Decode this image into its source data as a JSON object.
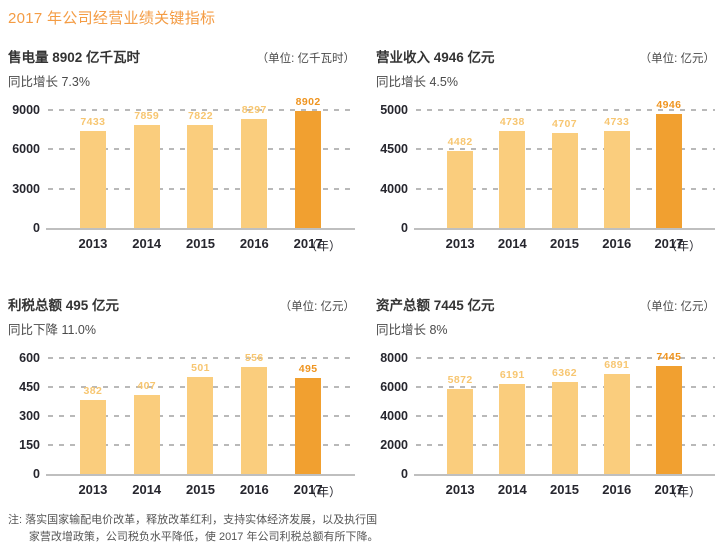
{
  "page": {
    "title": "2017 年公司经营业绩关键指标",
    "note_label": "注:",
    "note_text": "落实国家输配电价改革，释放改革红利，支持实体经济发展，以及执行国家营改增政策，公司税负水平降低，使 2017 年公司利税总额有所下降。"
  },
  "colors": {
    "accent": "#F49C44",
    "bar_light": "#FACD7D",
    "bar_dark": "#F1A030",
    "label_light": "#F7C671",
    "label_dark": "#EF941F",
    "axis_text": "#26262E",
    "grid_line": "#B9B9B9"
  },
  "chart_data": [
    {
      "type": "bar",
      "title": "售电量 8902 亿千瓦时",
      "subtitle": "同比增长 7.3%",
      "unit_label": "（单位: 亿千瓦时）",
      "categories": [
        "2013",
        "2014",
        "2015",
        "2016",
        "2017"
      ],
      "values": [
        7433,
        7859,
        7822,
        8297,
        8902
      ],
      "y_ticks": [
        0,
        3000,
        6000,
        9000
      ],
      "x_suffix": "（年）",
      "highlight_index": 4,
      "ylim": [
        0,
        9000
      ],
      "grid": "horizontal-dashed",
      "legend": "none"
    },
    {
      "type": "bar",
      "title": "营业收入 4946 亿元",
      "subtitle": "同比增长 4.5%",
      "unit_label": "（单位: 亿元）",
      "categories": [
        "2013",
        "2014",
        "2015",
        "2016",
        "2017"
      ],
      "values": [
        4482,
        4738,
        4707,
        4733,
        4946
      ],
      "y_ticks": [
        0,
        4000,
        4500,
        5000
      ],
      "x_suffix": "（年）",
      "highlight_index": 4,
      "ylim": [
        0,
        5000
      ],
      "axis_note": "broken axis: segment 0-4000 compressed to one tick interval",
      "grid": "horizontal-dashed",
      "legend": "none"
    },
    {
      "type": "bar",
      "title": "利税总额 495 亿元",
      "subtitle": "同比下降 11.0%",
      "unit_label": "（单位: 亿元）",
      "categories": [
        "2013",
        "2014",
        "2015",
        "2016",
        "2017"
      ],
      "values": [
        382,
        407,
        501,
        556,
        495
      ],
      "y_ticks": [
        0,
        150,
        300,
        450,
        600
      ],
      "x_suffix": "（年）",
      "highlight_index": 4,
      "ylim": [
        0,
        600
      ],
      "grid": "horizontal-dashed",
      "legend": "none"
    },
    {
      "type": "bar",
      "title": "资产总额 7445 亿元",
      "subtitle": "同比增长 8%",
      "unit_label": "（单位: 亿元）",
      "categories": [
        "2013",
        "2014",
        "2015",
        "2016",
        "2017"
      ],
      "values": [
        5872,
        6191,
        6362,
        6891,
        7445
      ],
      "y_ticks": [
        0,
        2000,
        4000,
        6000,
        8000
      ],
      "x_suffix": "（年）",
      "highlight_index": 4,
      "ylim": [
        0,
        8000
      ],
      "grid": "horizontal-dashed",
      "legend": "none"
    }
  ]
}
